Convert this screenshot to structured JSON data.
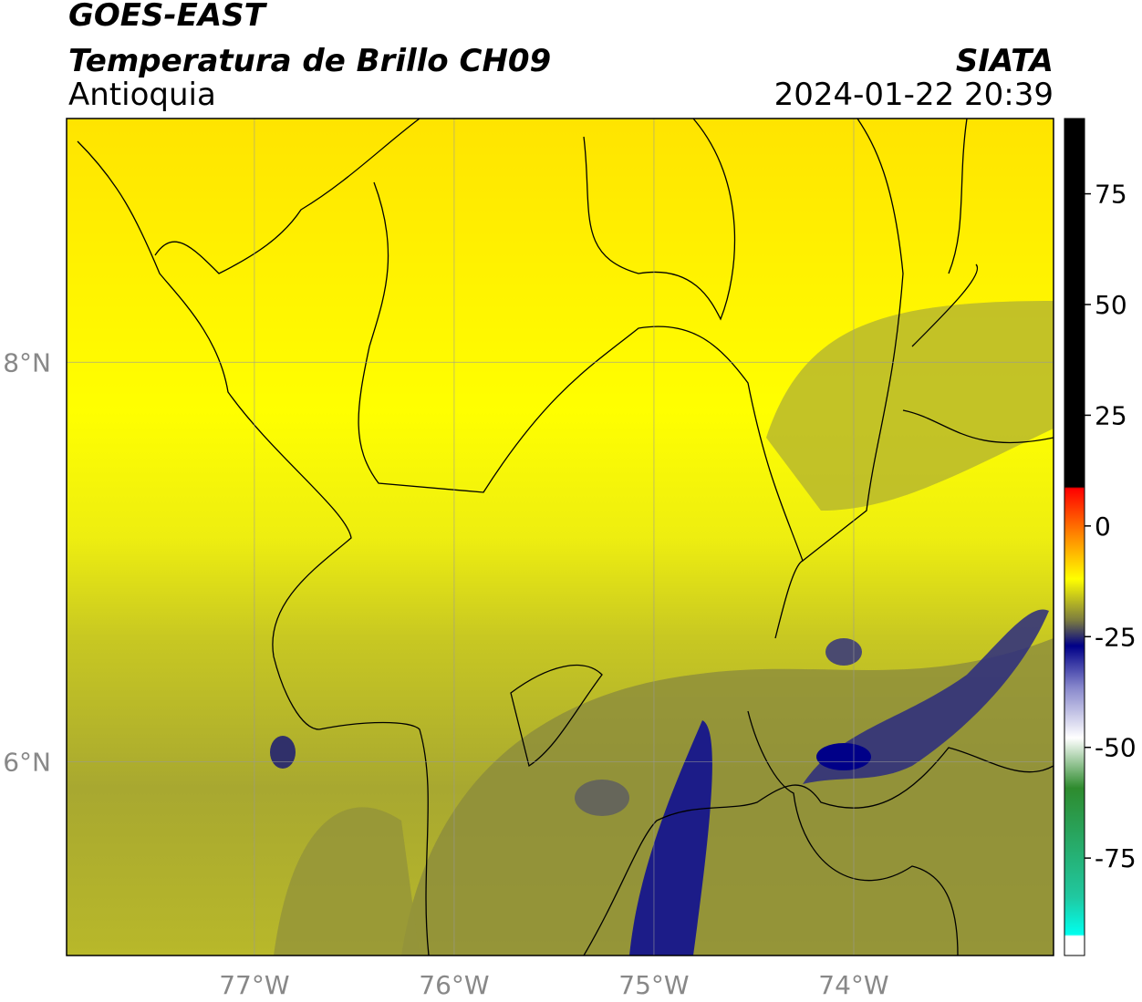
{
  "header": {
    "title": "GOES-EAST",
    "subtitle": "Temperatura de Brillo CH09",
    "region": "Antioquia",
    "source": "SIATA",
    "datetime": "2024-01-22 20:39"
  },
  "map": {
    "lonlim": [
      -77.94,
      -73.0
    ],
    "latlim": [
      5.03,
      9.22
    ],
    "lonticks": [
      {
        "value": -77,
        "label": "77°W"
      },
      {
        "value": -76,
        "label": "76°W"
      },
      {
        "value": -75,
        "label": "75°W"
      },
      {
        "value": -74,
        "label": "74°W"
      }
    ],
    "latticks": [
      {
        "value": 8,
        "label": "8°N"
      },
      {
        "value": 6,
        "label": "6°N"
      }
    ]
  },
  "colorbar": {
    "lim": [
      -97,
      92
    ],
    "ticks": [
      75,
      50,
      25,
      0,
      -25,
      -50,
      -75
    ]
  }
}
